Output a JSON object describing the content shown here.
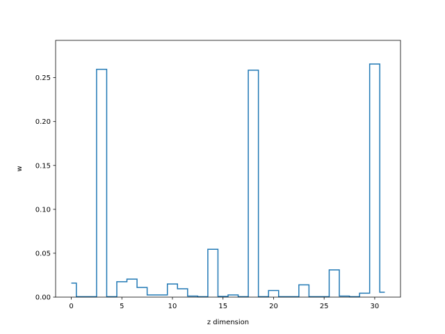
{
  "chart_data": {
    "type": "step",
    "xlabel": "z dimension",
    "ylabel": "w",
    "xlim": [
      -1.55,
      32.55
    ],
    "ylim": [
      0,
      0.2925
    ],
    "xticks": [
      0,
      5,
      10,
      15,
      20,
      25,
      30
    ],
    "yticks": [
      0.0,
      0.05,
      0.1,
      0.15,
      0.2,
      0.25
    ],
    "xtick_labels": [
      "0",
      "5",
      "10",
      "15",
      "20",
      "25",
      "30"
    ],
    "ytick_labels": [
      "0.00",
      "0.05",
      "0.10",
      "0.15",
      "0.20",
      "0.25"
    ],
    "step_where": "mid",
    "grid": false,
    "colors": {
      "line": "#1f77b4",
      "axes": "#000000",
      "background": "#ffffff"
    },
    "x": [
      0,
      1,
      2,
      3,
      4,
      5,
      6,
      7,
      8,
      9,
      10,
      11,
      12,
      13,
      14,
      15,
      16,
      17,
      18,
      19,
      20,
      21,
      22,
      23,
      24,
      25,
      26,
      27,
      28,
      29,
      30,
      31
    ],
    "values": [
      0.016,
      0.0005,
      0.0005,
      0.2595,
      0.0005,
      0.0175,
      0.0205,
      0.011,
      0.0025,
      0.0025,
      0.015,
      0.0095,
      0.0012,
      0.0005,
      0.0545,
      0.0008,
      0.0025,
      0.0005,
      0.2585,
      0.0005,
      0.0075,
      0.0005,
      0.0005,
      0.014,
      0.0005,
      0.0005,
      0.031,
      0.0012,
      0.0005,
      0.0045,
      0.2655,
      0.0055
    ]
  }
}
